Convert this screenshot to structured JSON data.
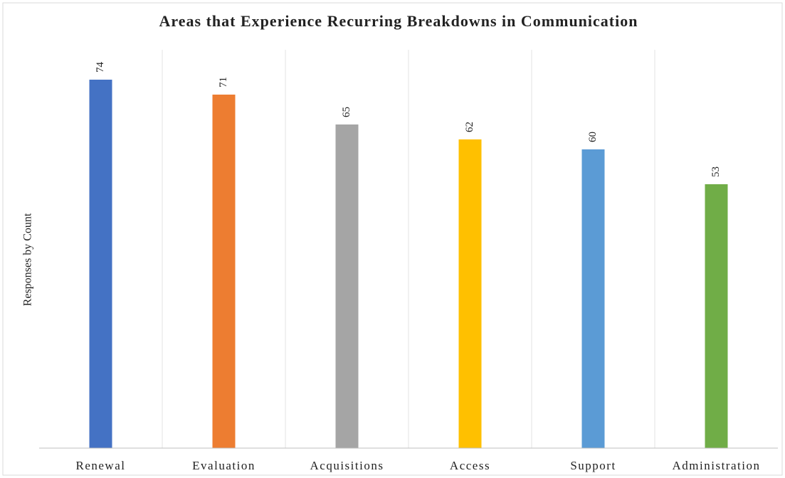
{
  "chart_data": {
    "type": "bar",
    "title": "Areas that Experience Recurring Breakdowns in Communication",
    "y_label": "Responses by Count",
    "categories": [
      "Renewal",
      "Evaluation",
      "Acquisitions",
      "Access",
      "Support",
      "Administration"
    ],
    "values": [
      74,
      71,
      65,
      62,
      60,
      53
    ],
    "colors": [
      "#4472c4",
      "#ed7d31",
      "#a5a5a5",
      "#ffc000",
      "#5b9bd5",
      "#70ad47"
    ],
    "ylim": [
      0,
      80
    ],
    "data_labels": true
  }
}
